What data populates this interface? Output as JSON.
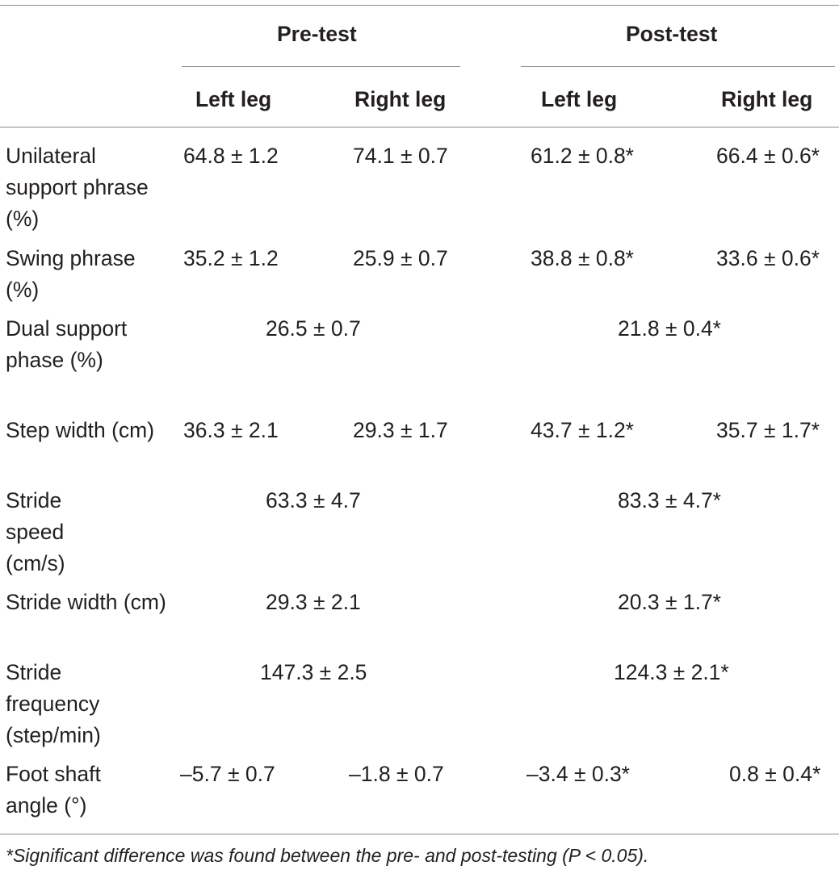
{
  "table": {
    "groups": [
      "Pre-test",
      "Post-test"
    ],
    "subheaders": [
      "Left leg",
      "Right leg",
      "Left leg",
      "Right leg"
    ],
    "rows": [
      {
        "label": "Unilateral support phrase (%)",
        "cells": [
          "64.8 ± 1.2",
          "74.1 ± 0.7",
          "61.2 ± 0.8*",
          "66.4 ± 0.6*"
        ]
      },
      {
        "label": "Swing phrase (%)",
        "cells": [
          "35.2 ± 1.2",
          "25.9 ± 0.7",
          "38.8 ± 0.8*",
          "33.6 ± 0.6*"
        ]
      },
      {
        "label": "Dual support phase (%)",
        "merged": [
          "26.5 ± 0.7",
          "21.8 ± 0.4*"
        ]
      },
      {
        "label": "Step width (cm)",
        "cells": [
          "36.3 ± 2.1",
          "29.3 ± 1.7",
          "43.7 ± 1.2*",
          "35.7 ± 1.7*"
        ]
      },
      {
        "label": "Stride speed (cm/s)",
        "merged": [
          "63.3 ± 4.7",
          "83.3 ± 4.7*"
        ]
      },
      {
        "label": "Stride width (cm)",
        "merged": [
          "29.3 ± 2.1",
          "20.3 ± 1.7*"
        ]
      },
      {
        "label": "Stride frequency (step/min)",
        "merged": [
          "147.3 ± 2.5",
          "124.3 ± 2.1*"
        ]
      },
      {
        "label": "Foot shaft angle (°)",
        "cells": [
          "–5.7 ± 0.7",
          "–1.8 ± 0.7",
          "–3.4 ± 0.3*",
          "0.8 ± 0.4*"
        ]
      }
    ],
    "footnote": "*Significant difference was found between the pre- and post-testing (P < 0.05)."
  }
}
